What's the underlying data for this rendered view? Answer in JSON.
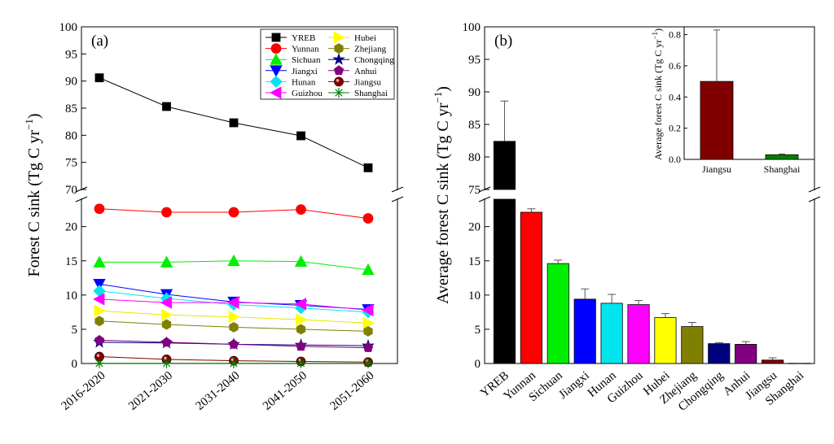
{
  "colors": {
    "YREB": "#000000",
    "Yunnan": "#ff0000",
    "Sichuan": "#00ee00",
    "Jiangxi": "#0000ff",
    "Hunan": "#00e5ee",
    "Guizhou": "#ff00ff",
    "Hubei": "#ffff00",
    "Zhejiang": "#808000",
    "Chongqing": "#000080",
    "Anhui": "#800080",
    "Jiangsu": "#800000",
    "Shanghai": "#008000"
  },
  "chart_data": [
    {
      "type": "line",
      "panel_label": "(a)",
      "ylabel": "Forest C sink (Tg C yr",
      "ylabel_sup": "−1",
      "ylabel_close": ")",
      "categories": [
        "2016-2020",
        "2021-2030",
        "2031-2040",
        "2041-2050",
        "2051-2060"
      ],
      "ylim_lower": [
        0,
        24
      ],
      "ylim_upper": [
        70,
        100
      ],
      "yticks_lower": [
        0,
        5,
        10,
        15,
        20
      ],
      "yticks_upper": [
        70,
        75,
        80,
        85,
        90,
        95,
        100
      ],
      "axis_break": true,
      "legend_position": "top-right",
      "legend_columns": 2,
      "series": [
        {
          "name": "YREB",
          "marker": "square",
          "values": [
            90.6,
            85.3,
            82.3,
            79.9,
            74.0
          ]
        },
        {
          "name": "Yunnan",
          "marker": "circle",
          "values": [
            22.6,
            22.1,
            22.1,
            22.5,
            21.2
          ]
        },
        {
          "name": "Sichuan",
          "marker": "triangle-up",
          "values": [
            14.8,
            14.8,
            15.0,
            14.9,
            13.7
          ]
        },
        {
          "name": "Jiangxi",
          "marker": "triangle-down",
          "values": [
            11.6,
            10.1,
            9.0,
            8.5,
            7.9
          ]
        },
        {
          "name": "Hunan",
          "marker": "diamond",
          "values": [
            10.6,
            9.5,
            8.6,
            8.1,
            7.5
          ]
        },
        {
          "name": "Guizhou",
          "marker": "triangle-left",
          "values": [
            9.4,
            8.9,
            8.9,
            8.7,
            7.8
          ]
        },
        {
          "name": "Hubei",
          "marker": "triangle-right",
          "values": [
            7.7,
            7.1,
            6.8,
            6.4,
            5.9
          ]
        },
        {
          "name": "Zhejiang",
          "marker": "hexagon",
          "values": [
            6.2,
            5.7,
            5.3,
            5.0,
            4.7
          ]
        },
        {
          "name": "Chongqing",
          "marker": "star",
          "values": [
            3.1,
            3.0,
            2.8,
            2.7,
            2.6
          ]
        },
        {
          "name": "Anhui",
          "marker": "pentagon",
          "values": [
            3.4,
            3.1,
            2.8,
            2.5,
            2.3
          ]
        },
        {
          "name": "Jiangsu",
          "marker": "ball",
          "values": [
            1.0,
            0.6,
            0.4,
            0.3,
            0.2
          ]
        },
        {
          "name": "Shanghai",
          "marker": "asterisk",
          "values": [
            0.04,
            0.03,
            0.03,
            0.03,
            0.03
          ]
        }
      ]
    },
    {
      "type": "bar",
      "panel_label": "(b)",
      "ylabel": "Average forest C sink (Tg C yr",
      "ylabel_sup": "−1",
      "ylabel_close": ")",
      "categories": [
        "YREB",
        "Yunnan",
        "Sichuan",
        "Jiangxi",
        "Hunan",
        "Guizhou",
        "Hubei",
        "Zhejiang",
        "Chongqing",
        "Anhui",
        "Jiangsu",
        "Shanghai"
      ],
      "values": [
        82.4,
        22.1,
        14.6,
        9.4,
        8.8,
        8.6,
        6.7,
        5.4,
        2.9,
        2.8,
        0.5,
        0.03
      ],
      "errors": [
        6.2,
        0.5,
        0.5,
        1.5,
        1.3,
        0.6,
        0.6,
        0.6,
        0.15,
        0.4,
        0.33,
        0.01
      ],
      "ylim_lower": [
        0,
        24
      ],
      "ylim_upper": [
        75,
        100
      ],
      "yticks_lower": [
        0,
        5,
        10,
        15,
        20
      ],
      "yticks_upper": [
        75,
        80,
        85,
        90,
        95,
        100
      ],
      "axis_break": true,
      "inset": {
        "type": "bar",
        "ylabel": "Average forest C sink (Tg C yr",
        "ylabel_sup": "−1",
        "ylabel_close": ")",
        "categories": [
          "Jiangsu",
          "Shanghai"
        ],
        "values": [
          0.5,
          0.03
        ],
        "errors": [
          0.33,
          0.005
        ],
        "ylim": [
          0,
          0.85
        ],
        "yticks": [
          0.0,
          0.2,
          0.4,
          0.6,
          0.8
        ]
      }
    }
  ]
}
